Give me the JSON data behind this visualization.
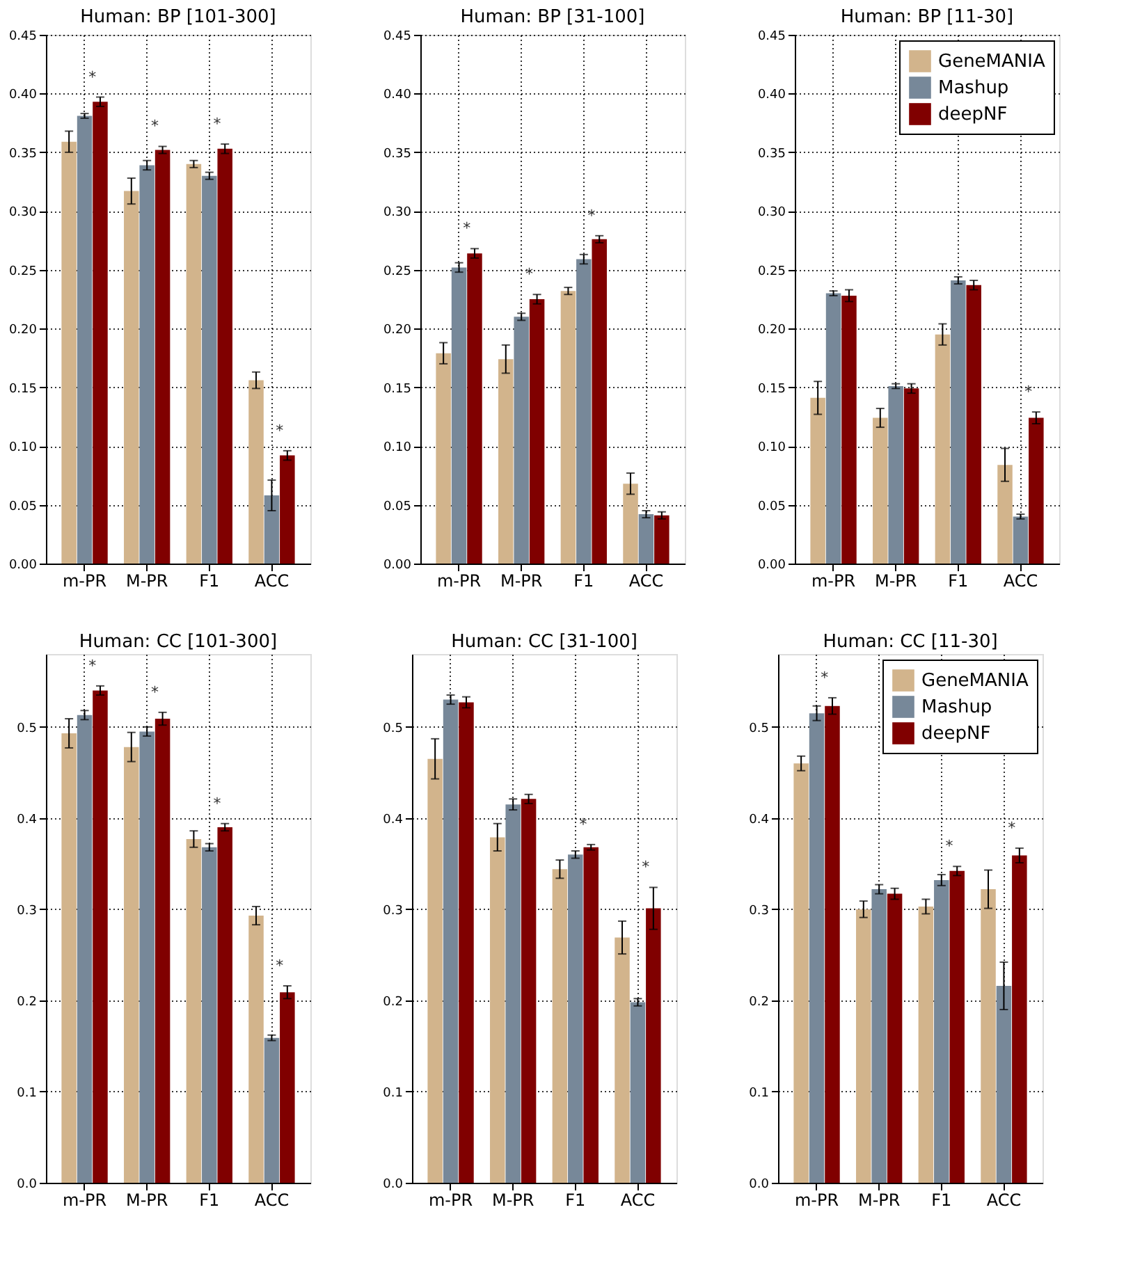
{
  "chart_data": [
    {
      "type": "bar",
      "title": "Human: BP [101-300]",
      "categories": [
        "m-PR",
        "M-PR",
        "F1",
        "ACC"
      ],
      "series": [
        {
          "color": "#d2b48c",
          "values": [
            0.359,
            0.317,
            0.34,
            0.156
          ],
          "errors": [
            0.009,
            0.011,
            0.003,
            0.007
          ]
        },
        {
          "color": "#778899",
          "values": [
            0.381,
            0.339,
            0.33,
            0.058
          ],
          "errors": [
            0.002,
            0.004,
            0.003,
            0.013
          ]
        },
        {
          "color": "#800000",
          "values": [
            0.393,
            0.352,
            0.353,
            0.092
          ],
          "errors": [
            0.004,
            0.003,
            0.004,
            0.004
          ]
        }
      ],
      "annotations": [
        "*",
        "*",
        "*",
        "*"
      ],
      "ylim": [
        0,
        0.45
      ],
      "yticks": [
        {
          "value": 0,
          "label": "0.00"
        },
        {
          "value": 0.05,
          "label": "0.05"
        },
        {
          "value": 0.1,
          "label": "0.10"
        },
        {
          "value": 0.15,
          "label": "0.15"
        },
        {
          "value": 0.2,
          "label": "0.20"
        },
        {
          "value": 0.25,
          "label": "0.25"
        },
        {
          "value": 0.3,
          "label": "0.30"
        },
        {
          "value": 0.35,
          "label": "0.35"
        },
        {
          "value": 0.4,
          "label": "0.40"
        },
        {
          "value": 0.45,
          "label": "0.45"
        }
      ],
      "grid": true
    },
    {
      "type": "bar",
      "title": "Human: BP [31-100]",
      "categories": [
        "m-PR",
        "M-PR",
        "F1",
        "ACC"
      ],
      "series": [
        {
          "color": "#d2b48c",
          "values": [
            0.179,
            0.174,
            0.232,
            0.068
          ],
          "errors": [
            0.009,
            0.012,
            0.003,
            0.009
          ]
        },
        {
          "color": "#778899",
          "values": [
            0.252,
            0.21,
            0.259,
            0.042
          ],
          "errors": [
            0.004,
            0.003,
            0.004,
            0.003
          ]
        },
        {
          "color": "#800000",
          "values": [
            0.264,
            0.225,
            0.276,
            0.041
          ],
          "errors": [
            0.004,
            0.004,
            0.003,
            0.003
          ]
        }
      ],
      "annotations": [
        "*",
        "*",
        "*"
      ],
      "ylim": [
        0,
        0.45
      ],
      "yticks": [
        {
          "value": 0,
          "label": "0.00"
        },
        {
          "value": 0.05,
          "label": "0.05"
        },
        {
          "value": 0.1,
          "label": "0.10"
        },
        {
          "value": 0.15,
          "label": "0.15"
        },
        {
          "value": 0.2,
          "label": "0.20"
        },
        {
          "value": 0.25,
          "label": "0.25"
        },
        {
          "value": 0.3,
          "label": "0.30"
        },
        {
          "value": 0.35,
          "label": "0.35"
        },
        {
          "value": 0.4,
          "label": "0.40"
        },
        {
          "value": 0.45,
          "label": "0.45"
        }
      ],
      "grid": true
    },
    {
      "type": "bar",
      "title": "Human: BP [11-30]",
      "categories": [
        "m-PR",
        "M-PR",
        "F1",
        "ACC"
      ],
      "series": [
        {
          "name": "GeneMANIA",
          "color": "#d2b48c",
          "values": [
            0.141,
            0.124,
            0.195,
            0.084
          ],
          "errors": [
            0.014,
            0.008,
            0.009,
            0.014
          ]
        },
        {
          "name": "Mashup",
          "color": "#778899",
          "values": [
            0.23,
            0.151,
            0.241,
            0.04
          ],
          "errors": [
            0.002,
            0.002,
            0.003,
            0.002
          ]
        },
        {
          "name": "deepNF",
          "color": "#800000",
          "values": [
            0.228,
            0.149,
            0.237,
            0.124
          ],
          "errors": [
            0.005,
            0.004,
            0.004,
            0.005
          ]
        }
      ],
      "annotations": [
        "*"
      ],
      "ylim": [
        0,
        0.45
      ],
      "yticks": [
        {
          "value": 0,
          "label": "0.00"
        },
        {
          "value": 0.05,
          "label": "0.05"
        },
        {
          "value": 0.1,
          "label": "0.10"
        },
        {
          "value": 0.15,
          "label": "0.15"
        },
        {
          "value": 0.2,
          "label": "0.20"
        },
        {
          "value": 0.25,
          "label": "0.25"
        },
        {
          "value": 0.3,
          "label": "0.30"
        },
        {
          "value": 0.35,
          "label": "0.35"
        },
        {
          "value": 0.4,
          "label": "0.40"
        },
        {
          "value": 0.45,
          "label": "0.45"
        }
      ],
      "grid": true,
      "legend": "top right"
    },
    {
      "type": "bar",
      "title": "Human: CC [101-300]",
      "categories": [
        "m-PR",
        "M-PR",
        "F1",
        "ACC"
      ],
      "series": [
        {
          "color": "#d2b48c",
          "values": [
            0.493,
            0.478,
            0.377,
            0.293
          ],
          "errors": [
            0.016,
            0.016,
            0.009,
            0.01
          ]
        },
        {
          "color": "#778899",
          "values": [
            0.513,
            0.495,
            0.368,
            0.159
          ],
          "errors": [
            0.005,
            0.005,
            0.004,
            0.003
          ]
        },
        {
          "color": "#800000",
          "values": [
            0.54,
            0.509,
            0.39,
            0.209
          ],
          "errors": [
            0.005,
            0.007,
            0.004,
            0.007
          ]
        }
      ],
      "annotations": [
        "*",
        "*",
        "*",
        "*"
      ],
      "ylim": [
        0,
        0.58
      ],
      "yticks": [
        {
          "value": 0,
          "label": "0.0"
        },
        {
          "value": 0.1,
          "label": "0.1"
        },
        {
          "value": 0.2,
          "label": "0.2"
        },
        {
          "value": 0.3,
          "label": "0.3"
        },
        {
          "value": 0.4,
          "label": "0.4"
        },
        {
          "value": 0.5,
          "label": "0.5"
        }
      ],
      "grid": true
    },
    {
      "type": "bar",
      "title": "Human: CC [31-100]",
      "categories": [
        "m-PR",
        "M-PR",
        "F1",
        "ACC"
      ],
      "series": [
        {
          "color": "#d2b48c",
          "values": [
            0.465,
            0.379,
            0.344,
            0.269
          ],
          "errors": [
            0.022,
            0.015,
            0.01,
            0.018
          ]
        },
        {
          "color": "#778899",
          "values": [
            0.53,
            0.415,
            0.36,
            0.198
          ],
          "errors": [
            0.005,
            0.006,
            0.004,
            0.004
          ]
        },
        {
          "color": "#800000",
          "values": [
            0.527,
            0.421,
            0.368,
            0.301
          ],
          "errors": [
            0.006,
            0.005,
            0.003,
            0.023
          ]
        }
      ],
      "annotations": [
        "*",
        "*"
      ],
      "ylim": [
        0,
        0.58
      ],
      "yticks": [
        {
          "value": 0,
          "label": "0.0"
        },
        {
          "value": 0.1,
          "label": "0.1"
        },
        {
          "value": 0.2,
          "label": "0.2"
        },
        {
          "value": 0.3,
          "label": "0.3"
        },
        {
          "value": 0.4,
          "label": "0.4"
        },
        {
          "value": 0.5,
          "label": "0.5"
        }
      ],
      "grid": true
    },
    {
      "type": "bar",
      "title": "Human: CC [11-30]",
      "categories": [
        "m-PR",
        "M-PR",
        "F1",
        "ACC"
      ],
      "series": [
        {
          "name": "GeneMANIA",
          "color": "#d2b48c",
          "values": [
            0.46,
            0.3,
            0.303,
            0.322
          ],
          "errors": [
            0.008,
            0.009,
            0.008,
            0.021
          ]
        },
        {
          "name": "Mashup",
          "color": "#778899",
          "values": [
            0.515,
            0.322,
            0.332,
            0.216
          ],
          "errors": [
            0.008,
            0.005,
            0.006,
            0.026
          ]
        },
        {
          "name": "deepNF",
          "color": "#800000",
          "values": [
            0.523,
            0.317,
            0.342,
            0.359
          ],
          "errors": [
            0.009,
            0.006,
            0.005,
            0.008
          ]
        }
      ],
      "annotations": [
        "*",
        "*",
        "*"
      ],
      "ylim": [
        0,
        0.58
      ],
      "yticks": [
        {
          "value": 0,
          "label": "0.0"
        },
        {
          "value": 0.1,
          "label": "0.1"
        },
        {
          "value": 0.2,
          "label": "0.2"
        },
        {
          "value": 0.3,
          "label": "0.3"
        },
        {
          "value": 0.4,
          "label": "0.4"
        },
        {
          "value": 0.5,
          "label": "0.5"
        }
      ],
      "grid": true,
      "legend": "top right"
    }
  ]
}
